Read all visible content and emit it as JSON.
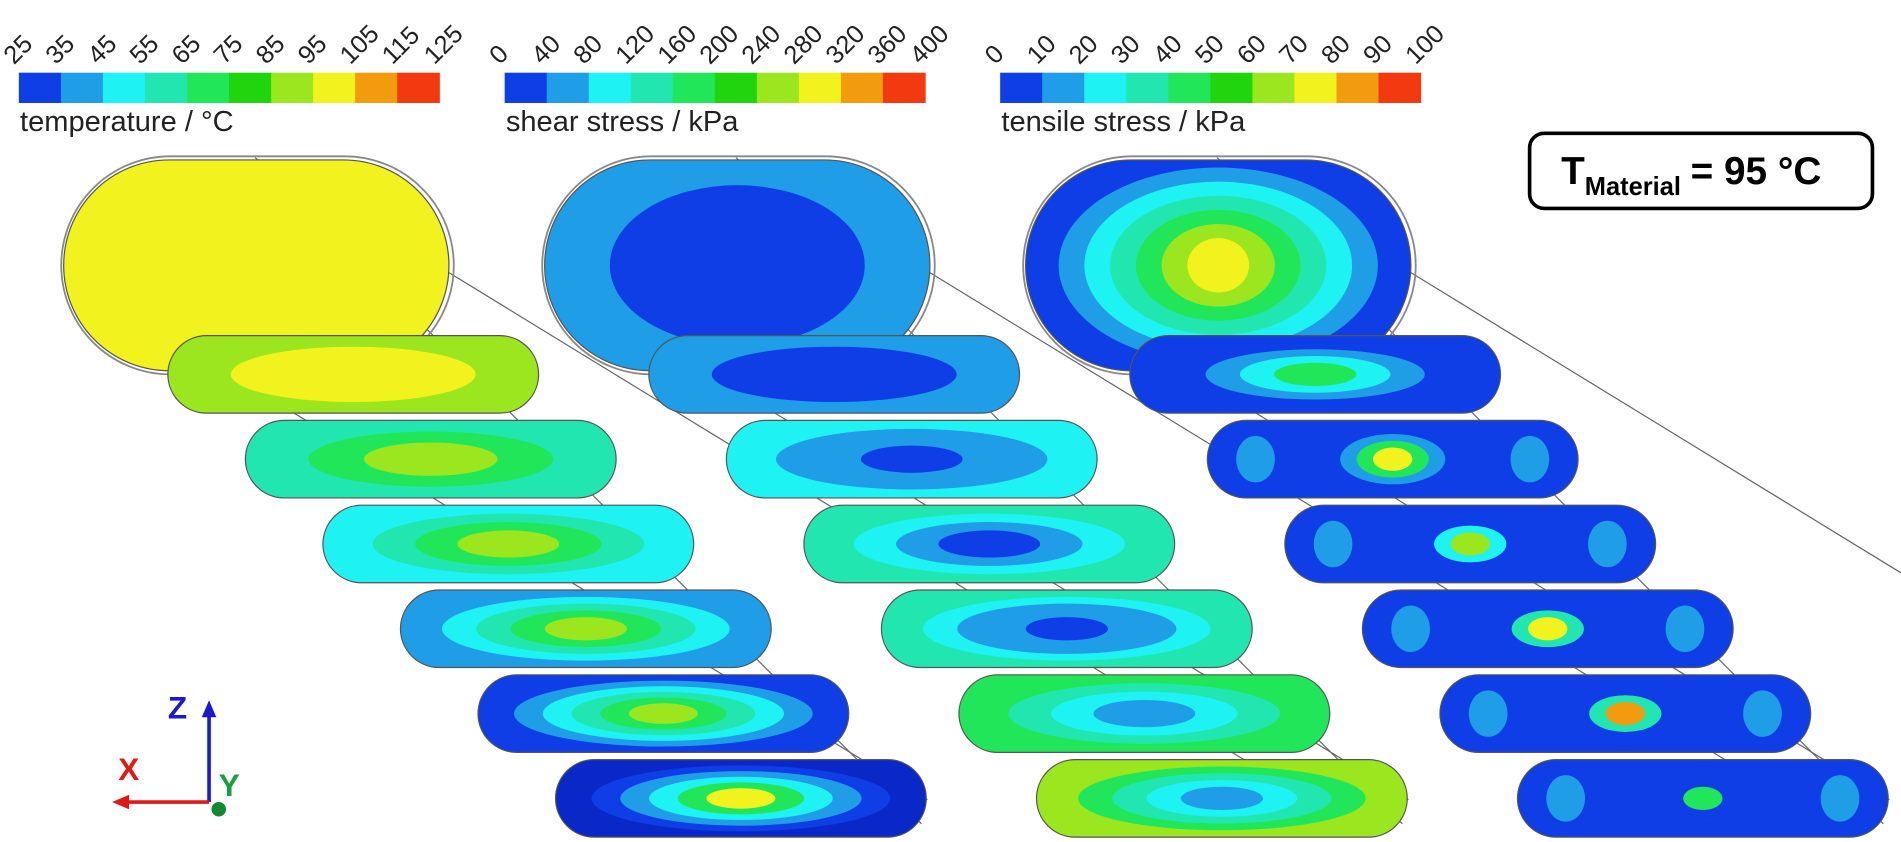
{
  "colorbars": [
    {
      "label": "temperature / °C",
      "ticks": [
        25,
        35,
        45,
        55,
        65,
        75,
        85,
        95,
        105,
        115,
        125
      ],
      "colors": [
        "#0f3de6",
        "#1f9de6",
        "#1ef2f2",
        "#22e6b0",
        "#22e65a",
        "#20d40e",
        "#9be61e",
        "#f2f21e",
        "#f29b0f",
        "#f2390f"
      ]
    },
    {
      "label": "shear stress / kPa",
      "ticks": [
        0,
        40,
        80,
        120,
        160,
        200,
        240,
        280,
        320,
        360,
        400
      ],
      "colors": [
        "#0f3de6",
        "#1f9de6",
        "#1ef2f2",
        "#22e6b0",
        "#22e65a",
        "#20d40e",
        "#9be61e",
        "#f2f21e",
        "#f29b0f",
        "#f2390f"
      ]
    },
    {
      "label": "tensile stress / kPa",
      "ticks": [
        0,
        10,
        20,
        30,
        40,
        50,
        60,
        70,
        80,
        90,
        100
      ],
      "colors": [
        "#0f3de6",
        "#1f9de6",
        "#1ef2f2",
        "#22e6b0",
        "#22e65a",
        "#20d40e",
        "#9be61e",
        "#f2f21e",
        "#f29b0f",
        "#f2390f"
      ]
    }
  ],
  "annotation": {
    "symbol": "T",
    "subscript": "Material",
    "text": "= 95 °C"
  },
  "axes": {
    "x": "X",
    "y": "Y",
    "z": "Z"
  }
}
